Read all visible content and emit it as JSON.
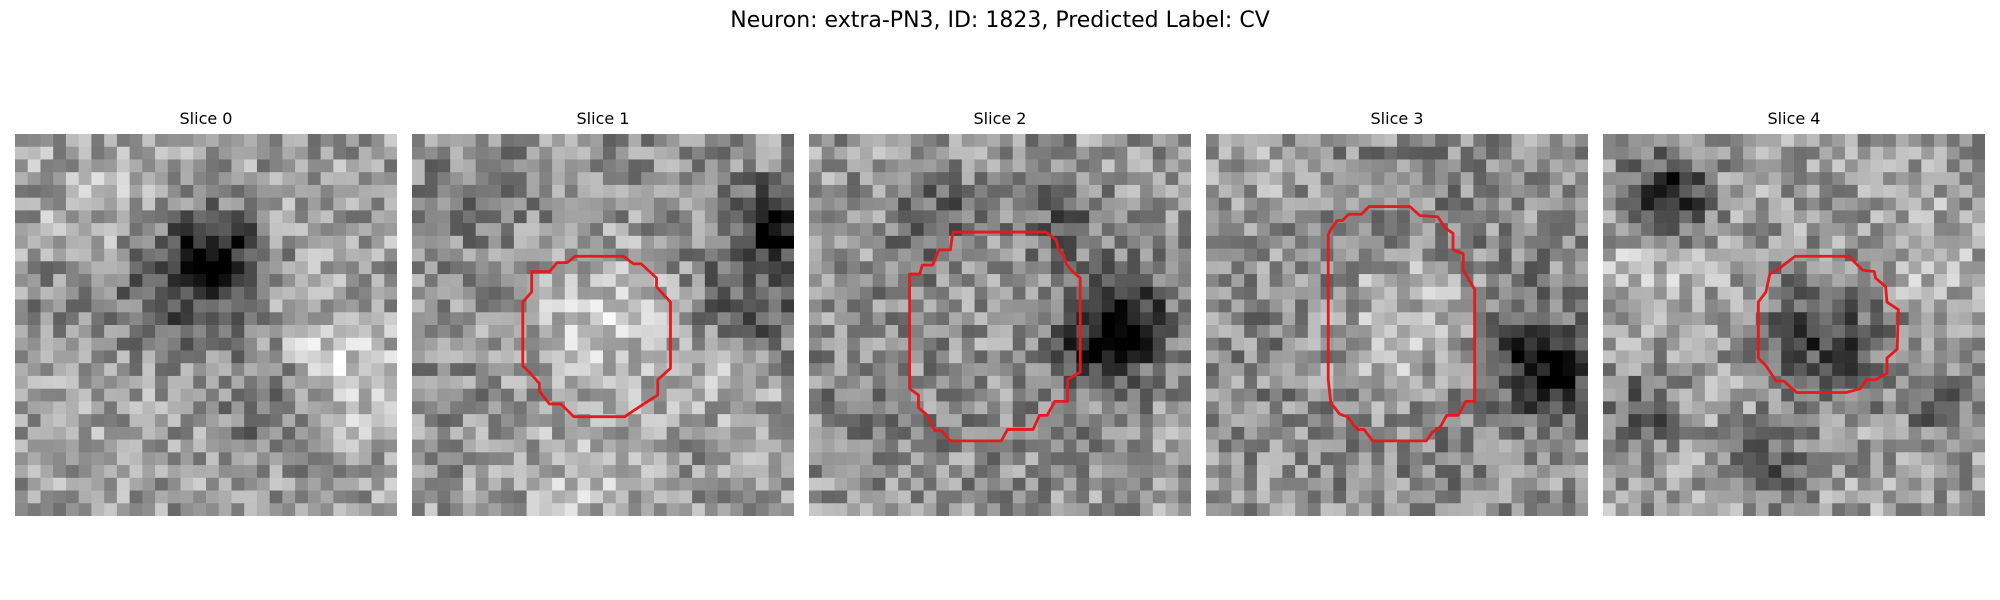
{
  "figure": {
    "title": "Neuron: extra-PN3, ID: 1823, Predicted Label: CV"
  },
  "colors": {
    "contour": "#e41a1c",
    "background": "#ffffff"
  },
  "colormap": "grayscale",
  "panels": [
    {
      "title": "Slice 0",
      "has_contour": false
    },
    {
      "title": "Slice 1",
      "has_contour": true
    },
    {
      "title": "Slice 2",
      "has_contour": true
    },
    {
      "title": "Slice 3",
      "has_contour": true
    },
    {
      "title": "Slice 4",
      "has_contour": true
    }
  ]
}
